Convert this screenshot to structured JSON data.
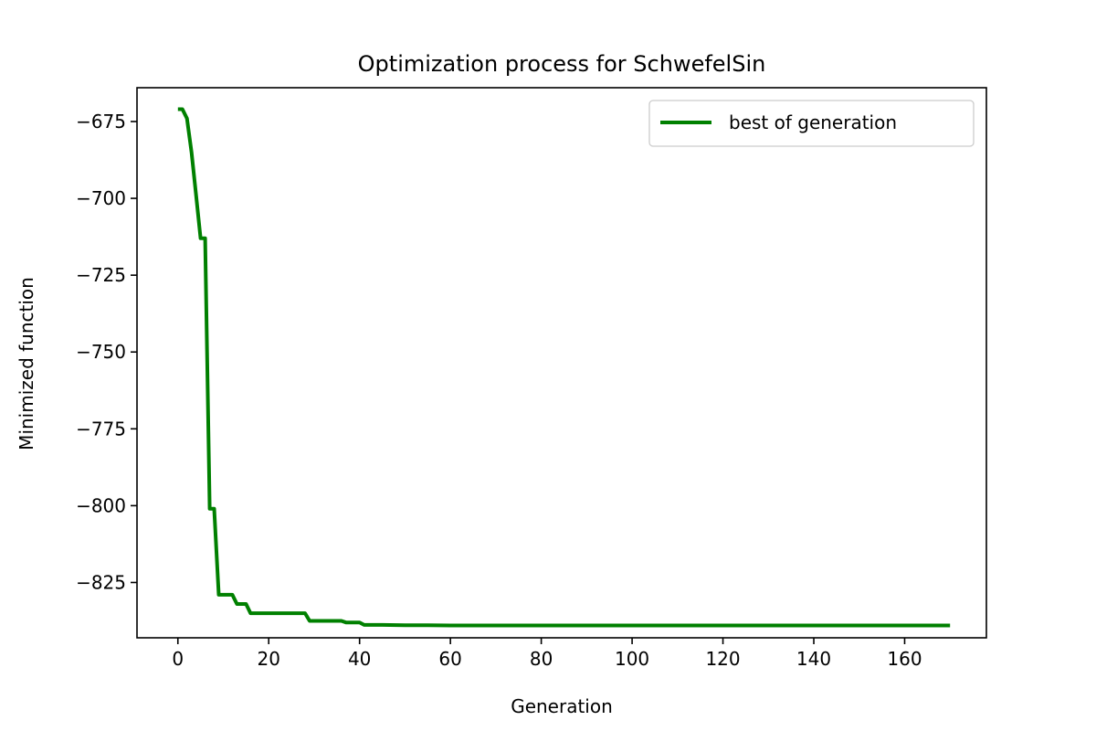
{
  "chart_data": {
    "type": "line",
    "title": "Optimization process for SchwefelSin",
    "xlabel": "Generation",
    "ylabel": "Minimized function",
    "xlim": [
      -9,
      178
    ],
    "ylim": [
      -843,
      -664
    ],
    "xticks": [
      0,
      20,
      40,
      60,
      80,
      100,
      120,
      140,
      160
    ],
    "xtick_labels": [
      "0",
      "20",
      "40",
      "60",
      "80",
      "100",
      "120",
      "140",
      "160"
    ],
    "yticks": [
      -675,
      -700,
      -725,
      -750,
      -775,
      -800,
      -825
    ],
    "ytick_labels": [
      "−675",
      "−700",
      "−725",
      "−750",
      "−775",
      "−800",
      "−825"
    ],
    "grid": false,
    "legend_position": "top-right",
    "series": [
      {
        "name": "best of generation",
        "color": "#008000",
        "x": [
          0,
          1,
          2,
          3,
          4,
          5,
          6,
          7,
          8,
          9,
          10,
          11,
          12,
          13,
          14,
          15,
          16,
          20,
          25,
          28,
          29,
          30,
          35,
          36,
          37,
          40,
          41,
          45,
          50,
          55,
          60,
          80,
          100,
          120,
          140,
          160,
          170
        ],
        "y": [
          -671,
          -671,
          -674,
          -685,
          -699,
          -713,
          -713,
          -801,
          -801,
          -829,
          -829,
          -829,
          -829,
          -832,
          -832,
          -832,
          -835,
          -835,
          -835,
          -835,
          -837.5,
          -837.5,
          -837.5,
          -837.5,
          -838,
          -838,
          -838.8,
          -838.8,
          -838.9,
          -838.9,
          -839,
          -839,
          -839,
          -839,
          -839,
          -839,
          -839
        ]
      }
    ]
  }
}
